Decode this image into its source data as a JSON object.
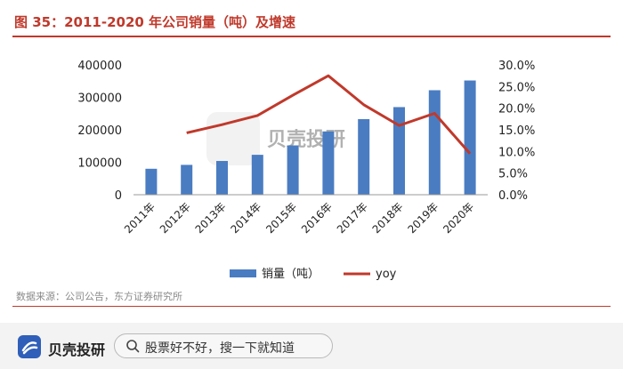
{
  "header": {
    "figure_title": "图 35：2011-2020 年公司销量（吨）及增速"
  },
  "chart_data": {
    "type": "bar",
    "categories": [
      "2011年",
      "2012年",
      "2013年",
      "2014年",
      "2015年",
      "2016年",
      "2017年",
      "2018年",
      "2019年",
      "2020年"
    ],
    "series": [
      {
        "name": "销量（吨）",
        "type": "bar",
        "axis": "left",
        "color": "#4a7cc2",
        "values": [
          80000,
          92000,
          104000,
          123000,
          152000,
          195000,
          233000,
          270000,
          322000,
          352000
        ]
      },
      {
        "name": "yoy",
        "type": "line",
        "axis": "right",
        "color": "#c0392b",
        "values": [
          null,
          14.3,
          16.2,
          18.3,
          23.0,
          27.5,
          20.8,
          16.0,
          18.8,
          9.5
        ]
      }
    ],
    "y_left": {
      "range": [
        0,
        400000
      ],
      "ticks": [
        0,
        100000,
        200000,
        300000,
        400000
      ],
      "tick_labels": [
        "0",
        "100000",
        "200000",
        "300000",
        "400000"
      ]
    },
    "y_right": {
      "range": [
        0,
        30
      ],
      "ticks": [
        0,
        5,
        10,
        15,
        20,
        25,
        30
      ],
      "tick_labels": [
        "0.0%",
        "5.0%",
        "10.0%",
        "15.0%",
        "20.0%",
        "25.0%",
        "30.0%"
      ]
    },
    "grid": false,
    "legend_position": "bottom"
  },
  "watermark": {
    "text": "贝壳投研"
  },
  "source": {
    "text": "数据来源：公司公告，东方证券研究所"
  },
  "footer": {
    "brand": "贝壳投研",
    "search_placeholder": "股票好不好，搜一下就知道"
  },
  "colors": {
    "title_red": "#c0392b",
    "bar_blue": "#4a7cc2",
    "line_red": "#c0392b"
  }
}
